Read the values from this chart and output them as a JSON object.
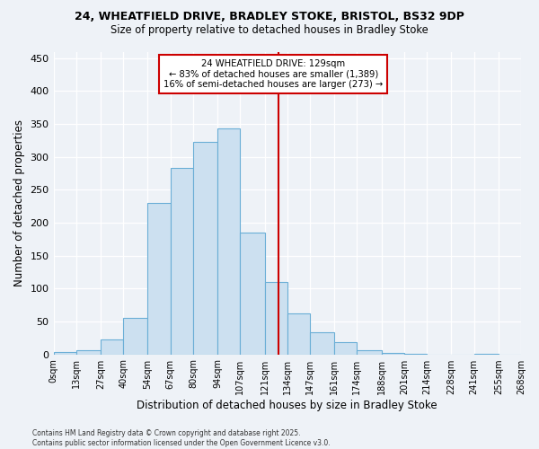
{
  "title1": "24, WHEATFIELD DRIVE, BRADLEY STOKE, BRISTOL, BS32 9DP",
  "title2": "Size of property relative to detached houses in Bradley Stoke",
  "xlabel": "Distribution of detached houses by size in Bradley Stoke",
  "ylabel": "Number of detached properties",
  "footnote": "Contains HM Land Registry data © Crown copyright and database right 2025.\nContains public sector information licensed under the Open Government Licence v3.0.",
  "bin_labels": [
    "0sqm",
    "13sqm",
    "27sqm",
    "40sqm",
    "54sqm",
    "67sqm",
    "80sqm",
    "94sqm",
    "107sqm",
    "121sqm",
    "134sqm",
    "147sqm",
    "161sqm",
    "174sqm",
    "188sqm",
    "201sqm",
    "214sqm",
    "228sqm",
    "241sqm",
    "255sqm",
    "268sqm"
  ],
  "bar_heights": [
    3,
    6,
    22,
    55,
    230,
    283,
    323,
    344,
    185,
    110,
    62,
    33,
    18,
    6,
    2,
    1,
    0,
    0,
    1,
    0
  ],
  "bin_edges": [
    0,
    13,
    27,
    40,
    54,
    67,
    80,
    94,
    107,
    121,
    134,
    147,
    161,
    174,
    188,
    201,
    214,
    228,
    241,
    255,
    268
  ],
  "vline_x": 129,
  "annotation_title": "24 WHEATFIELD DRIVE: 129sqm",
  "annotation_line1": "← 83% of detached houses are smaller (1,389)",
  "annotation_line2": "16% of semi-detached houses are larger (273) →",
  "bar_color": "#cce0f0",
  "bar_edge_color": "#6aaed6",
  "vline_color": "#cc0000",
  "annotation_box_color": "#cc0000",
  "bg_color": "#eef2f7",
  "grid_color": "#ffffff",
  "ylim": [
    0,
    460
  ],
  "yticks": [
    0,
    50,
    100,
    150,
    200,
    250,
    300,
    350,
    400,
    450
  ]
}
